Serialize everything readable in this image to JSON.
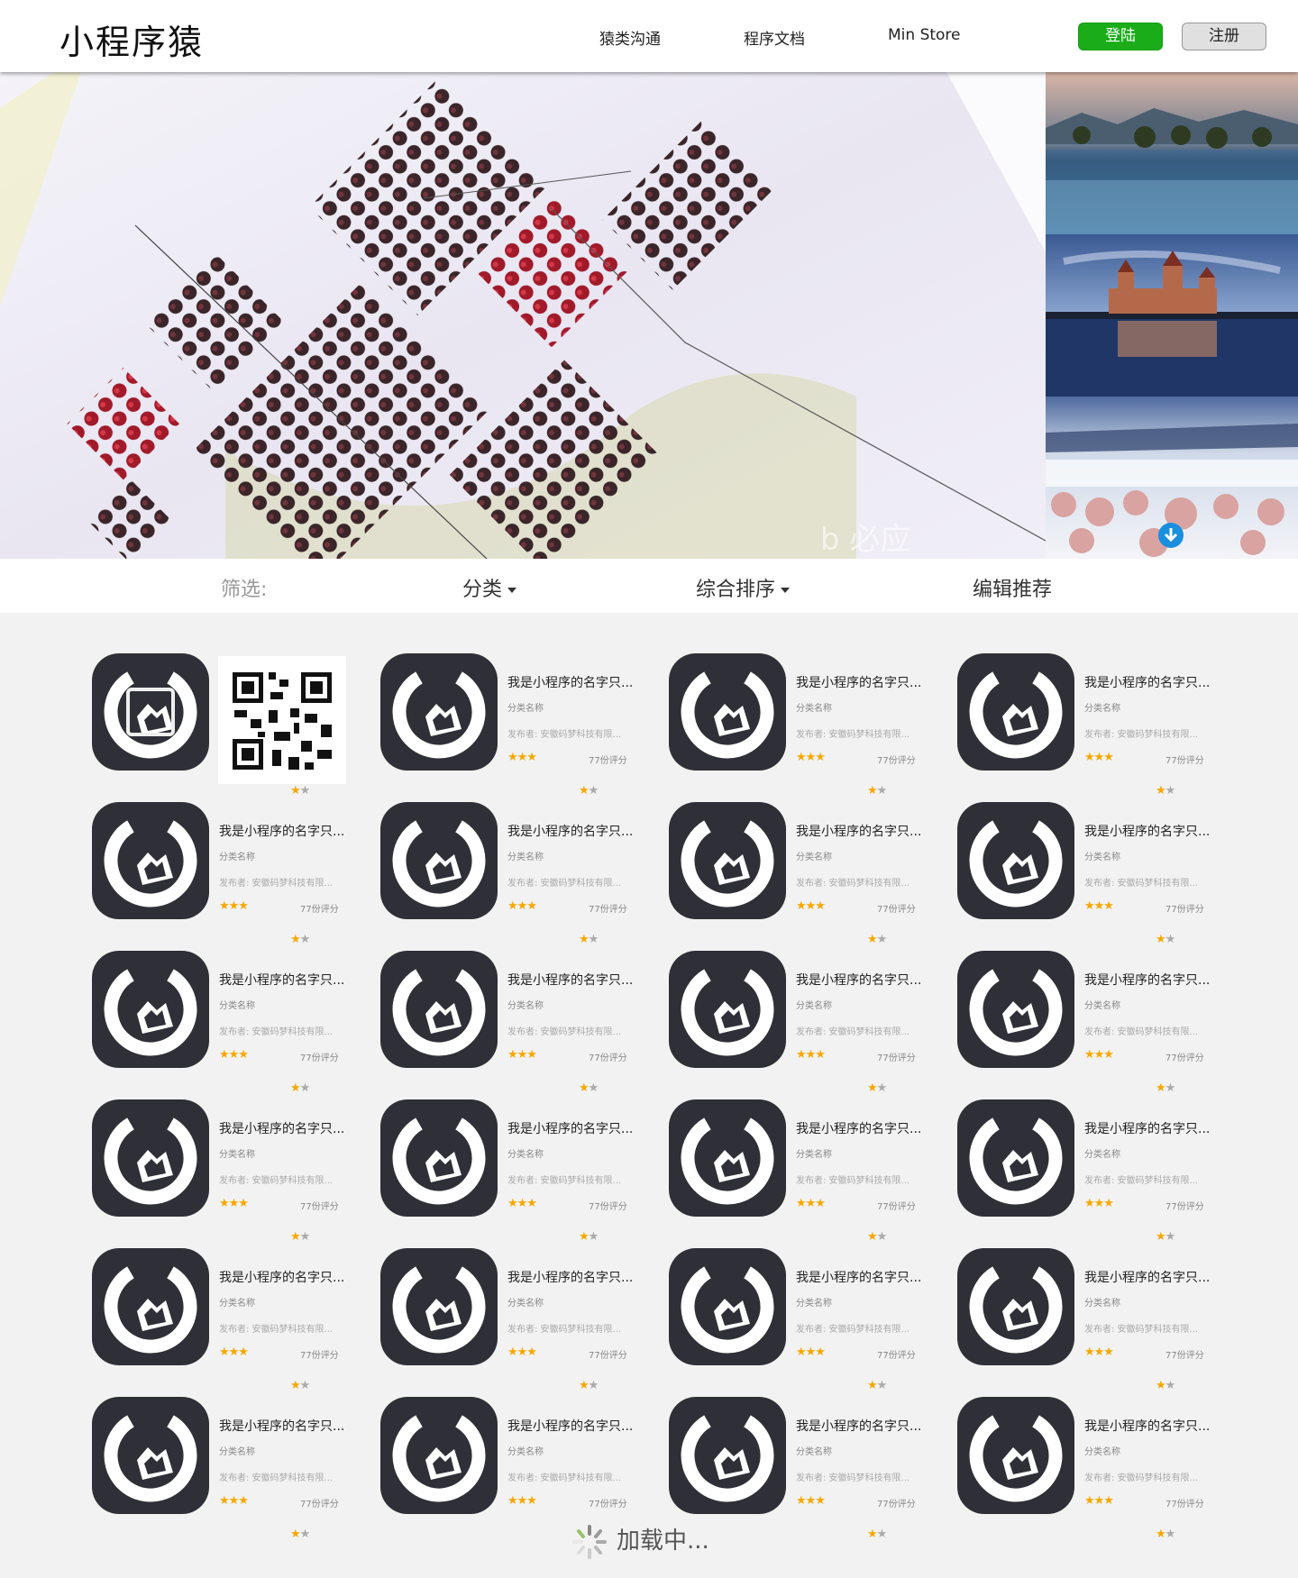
{
  "header": {
    "logo": "小程序猿",
    "nav": [
      "猿类沟通",
      "程序文档",
      "Min Store"
    ],
    "login_label": "登陆",
    "register_label": "注册"
  },
  "filter": {
    "label": "筛选:",
    "category": "分类",
    "sort": "综合排序",
    "editor_pick": "编辑推荐"
  },
  "app": {
    "name": "我是小程序的名字只...",
    "category": "分类名称",
    "publisher": "发布者: 安徽码梦科技有限...",
    "stars": "★★★",
    "rating_count": "77份评分",
    "badge_rating": 1,
    "badge_max": 2
  },
  "loading_text": "加载中...",
  "colors": {
    "accent_green": "#1aad19",
    "star": "#f6a700",
    "icon_bg": "#2f2f37"
  }
}
